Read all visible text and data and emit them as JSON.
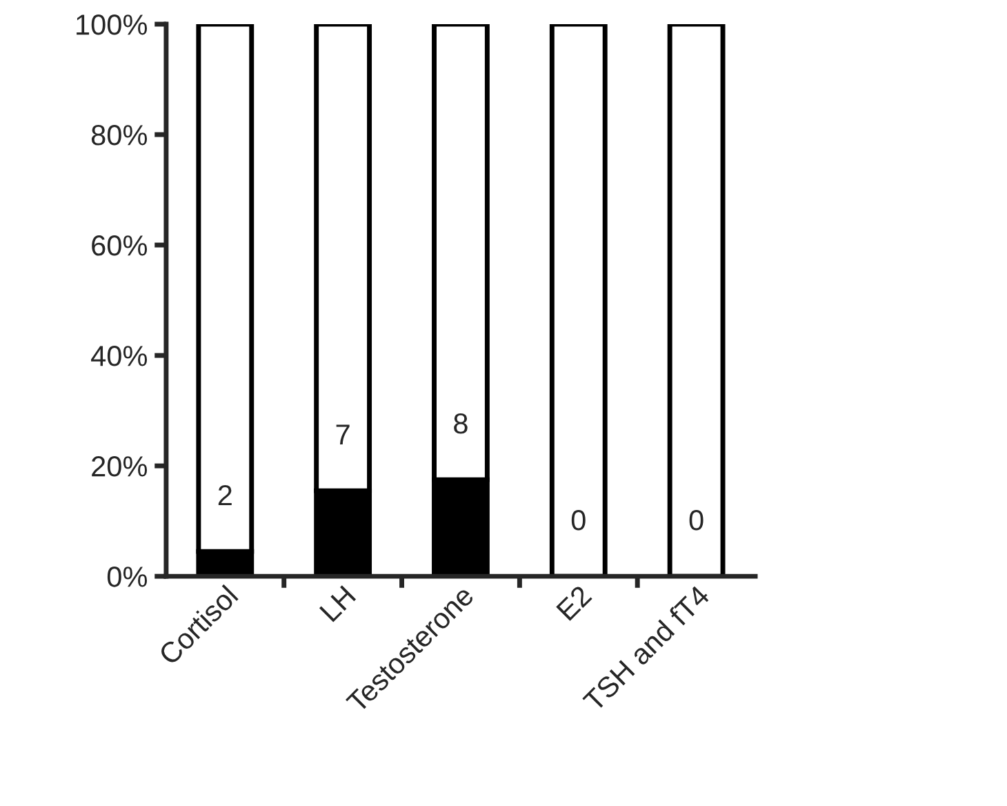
{
  "chart_data": {
    "type": "bar",
    "stacked": true,
    "categories": [
      "Cortisol",
      "LH",
      "Testosterone",
      "E2",
      "TSH and fT4"
    ],
    "series": [
      {
        "color": "#000000",
        "values": [
          4.5,
          15.5,
          17.5,
          0,
          0
        ]
      },
      {
        "color": "#ffffff",
        "values": [
          95.5,
          84.5,
          82.5,
          100,
          100
        ]
      }
    ],
    "ylim": [
      0,
      100
    ],
    "yticks": [
      {
        "value": 0,
        "label": "0%"
      },
      {
        "value": 20,
        "label": "20%"
      },
      {
        "value": 40,
        "label": "40%"
      },
      {
        "value": 60,
        "label": "60%"
      },
      {
        "value": 80,
        "label": "80%"
      },
      {
        "value": 100,
        "label": "100%"
      }
    ],
    "annotations": [
      "2",
      "7",
      "8",
      "0",
      "0"
    ],
    "grid": false,
    "legend": false
  }
}
